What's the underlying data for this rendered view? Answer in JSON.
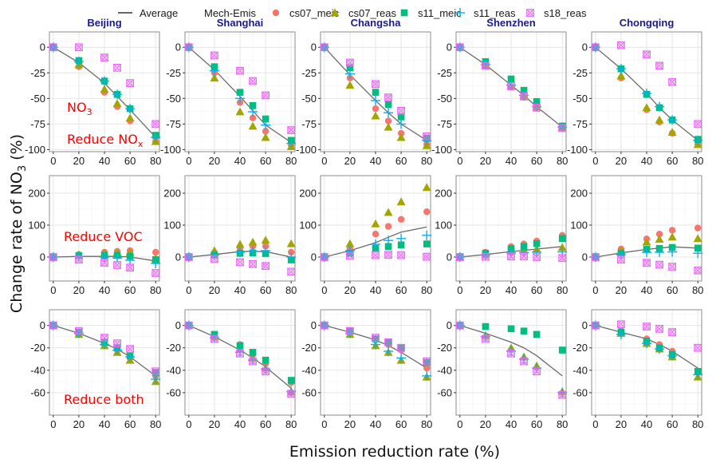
{
  "chart_data": {
    "type": "scatter",
    "xlabel": "Emission reduction rate (%)",
    "ylabel": "Change rate of NO3 (%)",
    "x": [
      0,
      20,
      40,
      50,
      60,
      80
    ],
    "x_ticks": [
      0,
      20,
      40,
      60,
      80
    ],
    "legend": {
      "placement": "top",
      "line_entry": "Average",
      "group_title": "Mech-Emis",
      "series": [
        {
          "name": "cs07_meic",
          "shape": "circle",
          "color": "#f8766d"
        },
        {
          "name": "cs07_reas",
          "shape": "triangle",
          "color": "#a3a500"
        },
        {
          "name": "s11_meic",
          "shape": "square",
          "color": "#00bf7d"
        },
        {
          "name": "s11_reas",
          "shape": "plus",
          "color": "#00b0f6"
        },
        {
          "name": "s18_reas",
          "shape": "boxed-x",
          "color": "#e76bf3"
        }
      ],
      "average_color": "#6b6b6b"
    },
    "cities": [
      "Beijing",
      "Shanghai",
      "Changsha",
      "Shenzhen",
      "Chongqing"
    ],
    "rows": [
      {
        "scenario": "Reduce NOx",
        "annotation": "Reduce NO",
        "annotation_sub": "x",
        "extra_label": "NO",
        "extra_label_sub": "3",
        "ylim": [
          -102,
          15
        ],
        "y_ticks": [
          0,
          -25,
          -50,
          -75,
          -100
        ],
        "panels": [
          {
            "city": "Beijing",
            "average": [
              0,
              -15,
              -35,
              -48,
              -61,
              -88
            ],
            "series": {
              "cs07_meic": [
                0,
                -19,
                -44,
                -58,
                -72,
                -92
              ],
              "cs07_reas": [
                0,
                -17,
                -41,
                -55,
                -69,
                -92
              ],
              "s11_meic": [
                0,
                -13,
                -33,
                -46,
                -60,
                -86
              ],
              "s11_reas": [
                0,
                -14,
                -33,
                -46,
                -60,
                -88
              ],
              "s18_reas": [
                0,
                0,
                -10,
                -20,
                -35,
                -75
              ]
            }
          },
          {
            "city": "Shanghai",
            "average": [
              0,
              -22,
              -48,
              -62,
              -76,
              -93
            ],
            "series": {
              "cs07_meic": [
                0,
                -25,
                -54,
                -69,
                -82,
                -96
              ],
              "cs07_reas": [
                0,
                -30,
                -63,
                -77,
                -88,
                -97
              ],
              "s11_meic": [
                0,
                -19,
                -44,
                -57,
                -70,
                -91
              ],
              "s11_reas": [
                0,
                -23,
                -50,
                -63,
                -76,
                -94
              ],
              "s18_reas": [
                0,
                -8,
                -23,
                -33,
                -47,
                -81
              ]
            }
          },
          {
            "city": "Changsha",
            "average": [
              0,
              -27,
              -52,
              -64,
              -75,
              -91
            ],
            "series": {
              "cs07_meic": [
                0,
                -30,
                -60,
                -72,
                -84,
                -95
              ],
              "cs07_reas": [
                0,
                -37,
                -67,
                -78,
                -88,
                -96
              ],
              "s11_meic": [
                0,
                -20,
                -44,
                -56,
                -68,
                -89
              ],
              "s11_reas": [
                0,
                -26,
                -52,
                -64,
                -75,
                -91
              ],
              "s18_reas": [
                0,
                -15,
                -36,
                -49,
                -62,
                -87
              ]
            }
          },
          {
            "city": "Shenzhen",
            "average": [
              0,
              -17,
              -37,
              -47,
              -58,
              -78
            ],
            "series": {
              "cs07_meic": [
                0,
                -18,
                -39,
                -49,
                -59,
                -79
              ],
              "cs07_reas": [
                0,
                -18,
                -38,
                -48,
                -58,
                -78
              ],
              "s11_meic": [
                0,
                -14,
                -31,
                -42,
                -53,
                -77
              ],
              "s11_reas": [
                0,
                -17,
                -37,
                -47,
                -58,
                -78
              ],
              "s18_reas": [
                0,
                -18,
                -38,
                -48,
                -59,
                -79
              ]
            }
          },
          {
            "city": "Chongqing",
            "average": [
              0,
              -21,
              -45,
              -59,
              -71,
              -91
            ],
            "series": {
              "cs07_meic": [
                0,
                -30,
                -61,
                -73,
                -84,
                -95
              ],
              "cs07_reas": [
                0,
                -28,
                -59,
                -71,
                -83,
                -95
              ],
              "s11_meic": [
                0,
                -21,
                -46,
                -59,
                -71,
                -90
              ],
              "s11_reas": [
                0,
                -21,
                -45,
                -58,
                -71,
                -91
              ],
              "s18_reas": [
                0,
                2,
                -7,
                -18,
                -34,
                -75
              ]
            }
          }
        ]
      },
      {
        "scenario": "Reduce VOC",
        "annotation": "Reduce VOC",
        "annotation_sub": "",
        "ylim": [
          -75,
          255
        ],
        "y_ticks": [
          0,
          100,
          200
        ],
        "panels": [
          {
            "city": "Beijing",
            "average": [
              0,
              2,
              2,
              2,
              0,
              -12
            ],
            "series": {
              "cs07_meic": [
                0,
                8,
                15,
                18,
                20,
                15
              ],
              "cs07_reas": [
                0,
                7,
                12,
                14,
                14,
                -5
              ],
              "s11_meic": [
                0,
                4,
                5,
                5,
                3,
                -8
              ],
              "s11_reas": [
                0,
                2,
                0,
                -3,
                -10,
                -20
              ],
              "s18_reas": [
                0,
                -8,
                -18,
                -25,
                -33,
                -50
              ]
            }
          },
          {
            "city": "Shanghai",
            "average": [
              0,
              8,
              17,
              18,
              17,
              0
            ],
            "series": {
              "cs07_meic": [
                0,
                14,
                30,
                34,
                34,
                15
              ],
              "cs07_reas": [
                0,
                20,
                40,
                47,
                53,
                42
              ],
              "s11_meic": [
                0,
                6,
                12,
                13,
                11,
                -9
              ],
              "s11_reas": [
                0,
                6,
                15,
                18,
                20,
                0
              ],
              "s18_reas": [
                0,
                -6,
                -16,
                -22,
                -28,
                -46
              ]
            }
          },
          {
            "city": "Changsha",
            "average": [
              0,
              20,
              45,
              62,
              78,
              94
            ],
            "series": {
              "cs07_meic": [
                0,
                25,
                72,
                96,
                118,
                142
              ],
              "cs07_reas": [
                0,
                42,
                104,
                140,
                173,
                218
              ],
              "s11_meic": [
                0,
                12,
                27,
                33,
                38,
                41
              ],
              "s11_reas": [
                0,
                20,
                40,
                52,
                58,
                68
              ],
              "s18_reas": [
                0,
                4,
                6,
                7,
                6,
                1
              ]
            }
          },
          {
            "city": "Shenzhen",
            "average": [
              0,
              8,
              17,
              21,
              25,
              33
            ],
            "series": {
              "cs07_meic": [
                0,
                15,
                33,
                41,
                50,
                68
              ],
              "cs07_reas": [
                0,
                9,
                18,
                22,
                25,
                30
              ],
              "s11_meic": [
                0,
                12,
                26,
                33,
                42,
                58
              ],
              "s11_reas": [
                0,
                6,
                13,
                14,
                15,
                16
              ],
              "s18_reas": [
                0,
                1,
                2,
                2,
                0,
                -3
              ]
            }
          },
          {
            "city": "Chongqing",
            "average": [
              0,
              13,
              24,
              28,
              32,
              28
            ],
            "series": {
              "cs07_meic": [
                0,
                25,
                57,
                72,
                84,
                91
              ],
              "cs07_reas": [
                0,
                20,
                47,
                56,
                63,
                58
              ],
              "s11_meic": [
                0,
                12,
                24,
                27,
                30,
                28
              ],
              "s11_reas": [
                0,
                7,
                15,
                15,
                16,
                12
              ],
              "s18_reas": [
                0,
                -8,
                -18,
                -24,
                -30,
                -42
              ]
            }
          }
        ]
      },
      {
        "scenario": "Reduce both",
        "annotation": "Reduce both",
        "annotation_sub": "",
        "ylim": [
          -80,
          14
        ],
        "y_ticks": [
          0,
          -20,
          -40,
          -60
        ],
        "panels": [
          {
            "city": "Beijing",
            "average": [
              0,
              -7,
              -16,
              -21,
              -28,
              -45
            ],
            "series": {
              "cs07_meic": [
                0,
                -7,
                -17,
                -22,
                -29,
                -45
              ],
              "cs07_reas": [
                0,
                -8,
                -18,
                -24,
                -31,
                -50
              ],
              "s11_meic": [
                0,
                -6,
                -15,
                -20,
                -27,
                -42
              ],
              "s11_reas": [
                0,
                -7,
                -17,
                -22,
                -28,
                -48
              ],
              "s18_reas": [
                0,
                -5,
                -11,
                -16,
                -21,
                -41
              ]
            }
          },
          {
            "city": "Shanghai",
            "average": [
              0,
              -10,
              -22,
              -29,
              -37,
              -56
            ],
            "series": {
              "cs07_meic": [
                0,
                -9,
                -17,
                -26,
                -34,
                -51
              ],
              "cs07_reas": [
                0,
                -10,
                -21,
                -29,
                -38,
                -59
              ],
              "s11_meic": [
                0,
                -8,
                -18,
                -24,
                -31,
                -49
              ],
              "s11_reas": [
                0,
                -11,
                -24,
                -31,
                -39,
                -59
              ],
              "s18_reas": [
                0,
                -12,
                -25,
                -32,
                -41,
                -61
              ]
            }
          },
          {
            "city": "Changsha",
            "average": [
              0,
              -6,
              -13,
              -18,
              -24,
              -38
            ],
            "series": {
              "cs07_meic": [
                0,
                -6,
                -13,
                -17,
                -22,
                -38
              ],
              "cs07_reas": [
                0,
                -8,
                -18,
                -24,
                -31,
                -46
              ],
              "s11_meic": [
                0,
                -5,
                -12,
                -15,
                -20,
                -33
              ],
              "s11_reas": [
                0,
                -7,
                -17,
                -23,
                -29,
                -45
              ],
              "s18_reas": [
                0,
                -5,
                -11,
                -15,
                -20,
                -32
              ]
            }
          },
          {
            "city": "Shenzhen",
            "average": [
              0,
              -7,
              -15,
              -20,
              -27,
              -45
            ],
            "series": {
              "cs07_meic": [
                0,
                -1,
                -3,
                -5,
                -8,
                -22
              ],
              "cs07_reas": [
                0,
                -9,
                -20,
                -28,
                -36,
                -59
              ],
              "s11_meic": [
                0,
                -1,
                -3,
                -5,
                -8,
                -22
              ],
              "s11_reas": [
                0,
                -10,
                -23,
                -30,
                -38,
                -60
              ],
              "s18_reas": [
                0,
                -12,
                -25,
                -32,
                -41,
                -62
              ]
            }
          },
          {
            "city": "Chongqing",
            "average": [
              0,
              -6,
              -12,
              -17,
              -23,
              -38
            ],
            "series": {
              "cs07_meic": [
                0,
                -5,
                -12,
                -17,
                -23,
                -42
              ],
              "cs07_reas": [
                0,
                -7,
                -16,
                -21,
                -28,
                -46
              ],
              "s11_meic": [
                0,
                -6,
                -14,
                -20,
                -26,
                -41
              ],
              "s11_reas": [
                0,
                -8,
                -16,
                -21,
                -27,
                -44
              ],
              "s18_reas": [
                0,
                1,
                -1,
                -3,
                -6,
                -20
              ]
            }
          }
        ]
      }
    ]
  }
}
